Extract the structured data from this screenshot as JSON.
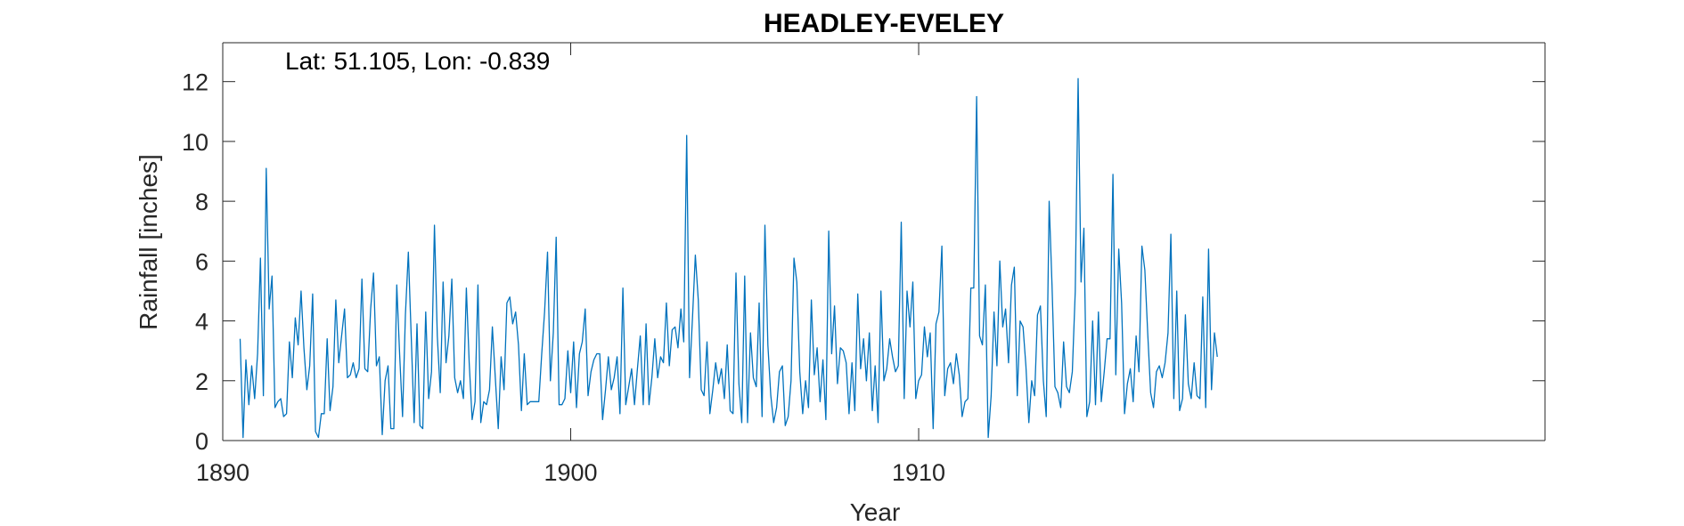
{
  "chart_data": {
    "type": "line",
    "title": "HEADLEY-EVELEY",
    "annotation": "Lat: 51.105, Lon: -0.839",
    "xlabel": "Year",
    "ylabel": "Rainfall [inches]",
    "xlim": [
      1890,
      1928
    ],
    "ylim": [
      0,
      13.3
    ],
    "xticks": [
      1890,
      1900,
      1910
    ],
    "yticks": [
      0,
      2,
      4,
      6,
      8,
      10,
      12
    ],
    "grid": false,
    "line_color": "#0072bd",
    "series": [
      {
        "values": [
          3.4,
          0.1,
          2.7,
          1.2,
          2.5,
          1.4,
          2.9,
          6.1,
          1.5,
          9.1,
          4.4,
          5.5,
          1.1,
          1.3,
          1.4,
          0.8,
          0.9,
          3.3,
          2.1,
          4.1,
          3.2,
          5.0,
          3.1,
          1.7,
          2.5,
          4.9,
          0.3,
          0.1,
          0.9,
          0.9,
          3.4,
          1.0,
          1.8,
          4.7,
          2.6,
          3.5,
          4.4,
          2.1,
          2.2,
          2.6,
          2.1,
          2.4,
          5.4,
          2.4,
          2.3,
          4.4,
          5.6,
          2.5,
          2.8,
          0.2,
          2.0,
          2.5,
          0.4,
          0.4,
          5.2,
          2.9,
          0.8,
          4.2,
          6.3,
          3.5,
          0.6,
          3.9,
          0.5,
          0.4,
          4.3,
          1.4,
          2.3,
          7.2,
          3.5,
          1.6,
          5.3,
          2.6,
          3.5,
          5.4,
          2.1,
          1.6,
          2.0,
          1.4,
          5.1,
          2.6,
          0.7,
          1.3,
          5.2,
          0.6,
          1.3,
          1.2,
          1.7,
          3.8,
          2.1,
          0.4,
          2.8,
          1.7,
          4.6,
          4.8,
          3.9,
          4.3,
          3.2,
          1.0,
          2.9,
          1.2,
          1.3,
          1.3,
          1.3,
          1.3,
          2.9,
          4.3,
          6.3,
          2.0,
          3.6,
          6.8,
          1.2,
          1.2,
          1.4,
          3.0,
          1.6,
          3.3,
          1.1,
          2.9,
          3.3,
          4.4,
          1.5,
          2.3,
          2.7,
          2.9,
          2.9,
          0.7,
          1.7,
          2.8,
          1.7,
          2.1,
          2.8,
          0.9,
          5.1,
          1.2,
          1.8,
          2.4,
          1.2,
          2.4,
          3.5,
          1.2,
          3.9,
          1.2,
          2.1,
          3.4,
          2.1,
          2.8,
          2.6,
          4.6,
          2.5,
          3.7,
          3.8,
          3.1,
          4.4,
          3.3,
          10.2,
          2.1,
          4.1,
          6.2,
          4.7,
          1.7,
          1.5,
          3.3,
          0.9,
          1.7,
          2.6,
          1.9,
          2.4,
          1.4,
          3.2,
          1.0,
          0.9,
          5.6,
          1.9,
          0.6,
          5.5,
          0.6,
          3.6,
          2.1,
          1.8,
          4.6,
          0.8,
          7.2,
          3.2,
          1.5,
          0.6,
          1.1,
          2.3,
          2.5,
          0.5,
          0.8,
          2.0,
          6.1,
          5.3,
          2.3,
          0.9,
          2.0,
          1.1,
          4.7,
          2.2,
          3.1,
          1.3,
          2.7,
          0.7,
          7.0,
          2.9,
          4.5,
          1.9,
          3.1,
          3.0,
          2.6,
          0.9,
          2.6,
          1.0,
          4.9,
          2.4,
          3.4,
          2.0,
          3.6,
          1.0,
          2.5,
          0.6,
          5.0,
          2.0,
          2.4,
          3.4,
          2.8,
          2.3,
          2.5,
          7.3,
          1.4,
          5.0,
          3.8,
          5.3,
          1.4,
          2.0,
          2.2,
          3.8,
          2.8,
          3.6,
          0.4,
          3.9,
          4.3,
          6.5,
          1.5,
          2.4,
          2.6,
          1.9,
          2.9,
          2.2,
          0.8,
          1.3,
          1.4,
          5.1,
          5.1,
          11.5,
          3.5,
          3.2,
          5.2,
          0.1,
          1.5,
          4.3,
          2.5,
          6.0,
          3.8,
          4.4,
          2.6,
          5.2,
          5.8,
          1.5,
          4.0,
          3.8,
          2.5,
          0.6,
          2.0,
          1.5,
          4.2,
          4.5,
          2.0,
          0.8,
          8.0,
          5.2,
          1.8,
          1.6,
          1.1,
          3.3,
          1.8,
          1.6,
          2.3,
          5.0,
          12.1,
          5.3,
          7.1,
          0.8,
          1.3,
          4.0,
          1.2,
          4.3,
          1.3,
          2.3,
          3.4,
          3.4,
          8.9,
          2.2,
          6.4,
          4.6,
          0.9,
          1.9,
          2.4,
          1.3,
          3.5,
          2.3,
          6.5,
          5.7,
          3.6,
          1.6,
          1.1,
          2.3,
          2.5,
          2.1,
          2.6,
          3.6,
          6.9,
          1.4,
          5.0,
          1.0,
          1.4,
          4.2,
          1.9,
          1.4,
          2.6,
          1.5,
          1.4,
          4.8,
          1.1,
          6.4,
          1.7,
          3.6,
          2.8
        ]
      }
    ],
    "x_start_year": 1890.5,
    "x_step_years": 0.08333
  }
}
